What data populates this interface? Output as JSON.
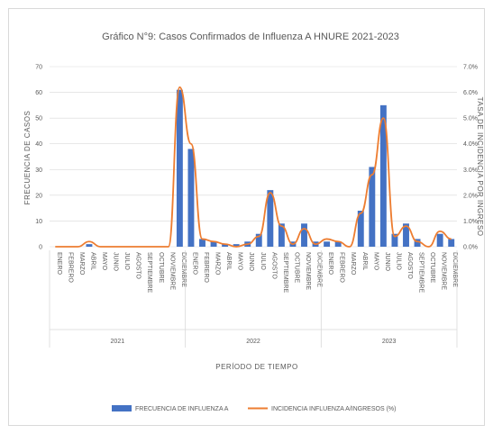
{
  "chart_data": {
    "type": "bar",
    "title": "Gráfico N°9: Casos Confirmados de Influenza A HNURE 2021-2023",
    "xlabel": "PERÍODO DE TIEMPO",
    "ylabel": "FRECUENCIA DE CASOS",
    "y2label": "TASA DE INCIDENCIA POR INGRESO",
    "ylim": [
      0,
      70
    ],
    "yticks": [
      "0",
      "10",
      "20",
      "30",
      "40",
      "50",
      "60",
      "70"
    ],
    "y2lim": [
      0,
      7
    ],
    "y2ticks": [
      "0.0%",
      "1.0%",
      "2.0%",
      "3.0%",
      "4.0%",
      "5.0%",
      "6.0%",
      "7.0%"
    ],
    "grid": true,
    "legend_position": "bottom",
    "years": [
      "2021",
      "2022",
      "2023"
    ],
    "months": [
      "ENERO",
      "FEBRERO",
      "MARZO",
      "ABRIL",
      "MAYO",
      "JUNIO",
      "JULIO",
      "AGOSTO",
      "SEPTIEMBRE",
      "OCTUBRE",
      "NOVIEMBRE",
      "DICIEMBRE"
    ],
    "series": [
      {
        "name": "FRECUENCIA DE INFLUENZA A",
        "kind": "bar",
        "axis": "left",
        "color": "#4472c4",
        "values": [
          0,
          0,
          0,
          1,
          0,
          0,
          0,
          0,
          0,
          0,
          0,
          61,
          38,
          3,
          2,
          1,
          1,
          2,
          5,
          22,
          9,
          2,
          9,
          2,
          2,
          2,
          0,
          14,
          31,
          55,
          5,
          9,
          3,
          0,
          5,
          3
        ]
      },
      {
        "name": "INCIDENCIA INFLUENZA A/INGRESOS (%)",
        "kind": "line",
        "axis": "right",
        "color": "#ed7d31",
        "values": [
          0,
          0,
          0,
          0.2,
          0,
          0,
          0,
          0,
          0,
          0,
          0,
          6.2,
          4.0,
          0.3,
          0.2,
          0.1,
          0.0,
          0.1,
          0.4,
          2.1,
          0.8,
          0.1,
          0.7,
          0.1,
          0.3,
          0.2,
          0.0,
          1.3,
          2.8,
          5.0,
          0.4,
          0.8,
          0.2,
          0.0,
          0.6,
          0.3
        ]
      }
    ]
  },
  "colors": {
    "bar": "#4472c4",
    "line": "#ed7d31",
    "grid": "#d9d9d9",
    "text": "#595959"
  }
}
